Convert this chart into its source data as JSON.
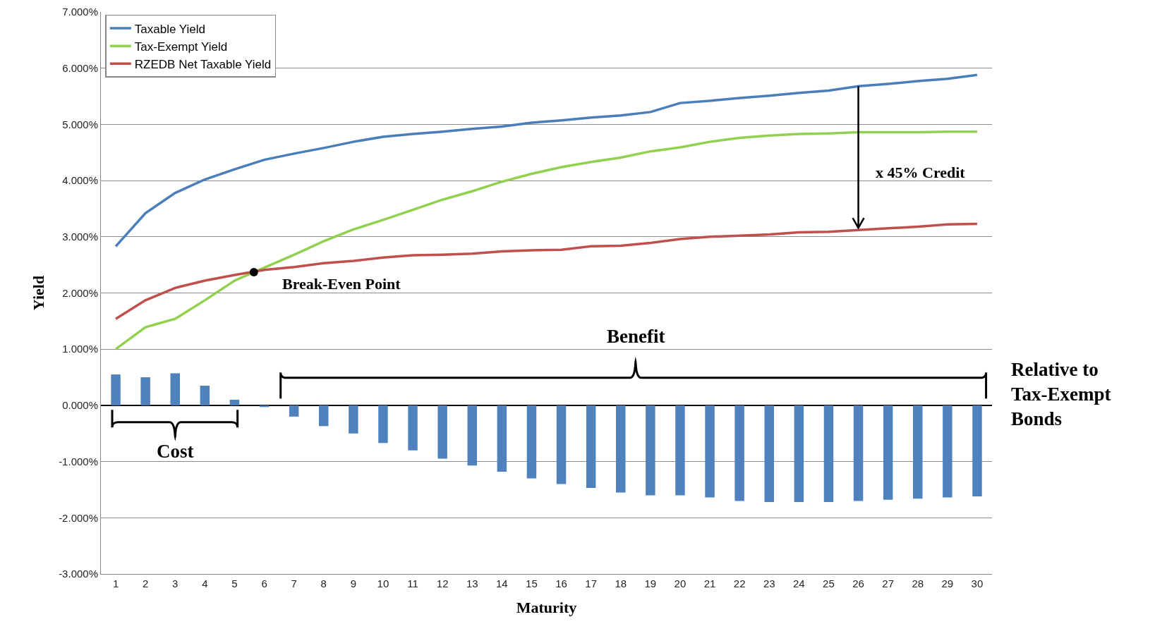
{
  "chart_data": {
    "type": "line",
    "xlabel": "Maturity",
    "ylabel": "Yield",
    "x": [
      1,
      2,
      3,
      4,
      5,
      6,
      7,
      8,
      9,
      10,
      11,
      12,
      13,
      14,
      15,
      16,
      17,
      18,
      19,
      20,
      21,
      22,
      23,
      24,
      25,
      26,
      27,
      28,
      29,
      30
    ],
    "xlim": [
      0.5,
      30.5
    ],
    "xticks": [
      1,
      2,
      3,
      4,
      5,
      6,
      7,
      8,
      9,
      10,
      11,
      12,
      13,
      14,
      15,
      16,
      17,
      18,
      19,
      20,
      21,
      22,
      23,
      24,
      25,
      26,
      27,
      28,
      29,
      30
    ],
    "ylim": [
      -3,
      7
    ],
    "yticks": [
      {
        "value": -3,
        "label": "-3.000%"
      },
      {
        "value": -2,
        "label": "-2.000%"
      },
      {
        "value": -1,
        "label": "-1.000%"
      },
      {
        "value": 0,
        "label": "0.000%"
      },
      {
        "value": 1,
        "label": "1.000%"
      },
      {
        "value": 2,
        "label": "2.000%"
      },
      {
        "value": 3,
        "label": "3.000%"
      },
      {
        "value": 4,
        "label": "4.000%"
      },
      {
        "value": 5,
        "label": "5.000%"
      },
      {
        "value": 6,
        "label": "6.000%"
      },
      {
        "value": 7,
        "label": "7.000%"
      }
    ],
    "grid": "y",
    "legend": "top left",
    "series": [
      {
        "name": "Taxable Yield",
        "color": "#4a7ebb",
        "values": [
          2.83,
          3.42,
          3.78,
          4.02,
          4.2,
          4.37,
          4.48,
          4.58,
          4.69,
          4.78,
          4.83,
          4.87,
          4.92,
          4.96,
          5.03,
          5.07,
          5.12,
          5.16,
          5.22,
          5.38,
          5.42,
          5.47,
          5.51,
          5.56,
          5.6,
          5.68,
          5.72,
          5.77,
          5.81,
          5.88
        ]
      },
      {
        "name": "Tax-Exempt Yield",
        "color": "#92d050",
        "values": [
          1.0,
          1.39,
          1.54,
          1.87,
          2.22,
          2.45,
          2.68,
          2.92,
          3.13,
          3.3,
          3.48,
          3.66,
          3.81,
          3.98,
          4.12,
          4.24,
          4.33,
          4.41,
          4.52,
          4.59,
          4.69,
          4.76,
          4.8,
          4.83,
          4.84,
          4.86,
          4.86,
          4.86,
          4.87,
          4.87
        ]
      },
      {
        "name": "RZEDB Net Taxable Yield",
        "color": "#c0504d",
        "values": [
          1.54,
          1.87,
          2.09,
          2.22,
          2.32,
          2.41,
          2.46,
          2.53,
          2.57,
          2.63,
          2.67,
          2.68,
          2.7,
          2.74,
          2.76,
          2.77,
          2.83,
          2.84,
          2.89,
          2.96,
          3.0,
          3.02,
          3.04,
          3.08,
          3.09,
          3.12,
          3.15,
          3.18,
          3.22,
          3.23
        ]
      },
      {
        "type": "bar",
        "color": "#4f81bd",
        "values": [
          0.55,
          0.5,
          0.57,
          0.35,
          0.1,
          -0.03,
          -0.2,
          -0.37,
          -0.5,
          -0.67,
          -0.8,
          -0.95,
          -1.07,
          -1.18,
          -1.3,
          -1.4,
          -1.47,
          -1.55,
          -1.6,
          -1.6,
          -1.64,
          -1.7,
          -1.72,
          -1.72,
          -1.72,
          -1.7,
          -1.68,
          -1.66,
          -1.64,
          -1.62
        ]
      },
      {
        "type": "scatter",
        "color": "#000000",
        "x": [
          5.65
        ],
        "values": [
          2.37
        ]
      }
    ],
    "annotations": [
      {
        "text": "Break-Even Point",
        "x": 5.65,
        "y": 2.37
      },
      "x 45% Credit",
      "Cost",
      "Benefit",
      "Relative to Tax-Exempt Bonds"
    ]
  }
}
